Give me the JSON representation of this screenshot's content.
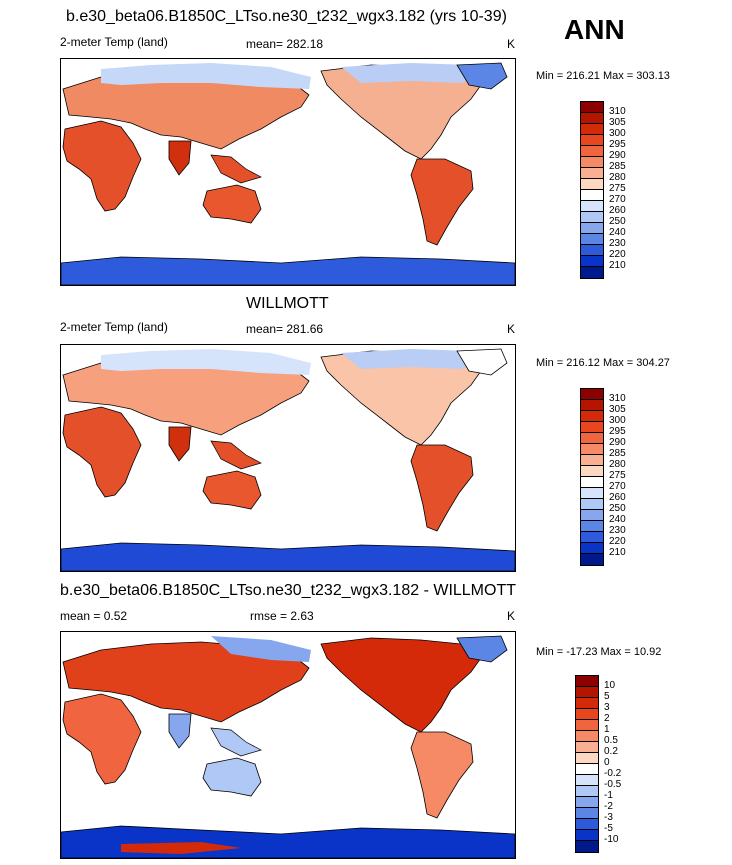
{
  "panels": [
    {
      "title": "b.e30_beta06.B1850C_LTso.ne30_t232_wgx3.182 (yrs 10-39)",
      "left_label": "2-meter Temp (land)",
      "center_label": "mean= 282.18",
      "units": "K",
      "minmax": "Min = 216.21 Max = 303.13",
      "colorbar_labels": [
        "310",
        "305",
        "300",
        "295",
        "290",
        "285",
        "280",
        "275",
        "270",
        "260",
        "250",
        "240",
        "230",
        "220",
        "210"
      ],
      "colorbar_colors": [
        "#8b0000",
        "#b51400",
        "#d42a0a",
        "#e8461e",
        "#f0653f",
        "#f68a66",
        "#f9b092",
        "#fcd7c2",
        "#ffffff",
        "#d6e4fb",
        "#b0c8f6",
        "#86a7ee",
        "#5b86e6",
        "#2e5bdc",
        "#0a34c8",
        "#001a8c"
      ]
    },
    {
      "title": "WILLMOTT",
      "left_label": "2-meter Temp (land)",
      "center_label": "mean= 281.66",
      "units": "K",
      "minmax": "Min = 216.12 Max = 304.27",
      "colorbar_labels": [
        "310",
        "305",
        "300",
        "295",
        "290",
        "285",
        "280",
        "275",
        "270",
        "260",
        "250",
        "240",
        "230",
        "220",
        "210"
      ],
      "colorbar_colors": [
        "#8b0000",
        "#b51400",
        "#d42a0a",
        "#e8461e",
        "#f0653f",
        "#f68a66",
        "#f9b092",
        "#fcd7c2",
        "#ffffff",
        "#d6e4fb",
        "#b0c8f6",
        "#86a7ee",
        "#5b86e6",
        "#2e5bdc",
        "#0a34c8",
        "#001a8c"
      ]
    },
    {
      "title": "b.e30_beta06.B1850C_LTso.ne30_t232_wgx3.182 - WILLMOTT",
      "left_label": "mean =   0.52",
      "center_label": "rmse =   2.63",
      "units": "K",
      "minmax": "Min = -17.23 Max =  10.92",
      "colorbar_labels": [
        "10",
        "5",
        "3",
        "2",
        "1",
        "0.5",
        "0.2",
        "0",
        "-0.2",
        "-0.5",
        "-1",
        "-2",
        "-3",
        "-5",
        "-10"
      ],
      "colorbar_colors": [
        "#8b0000",
        "#b51400",
        "#d42a0a",
        "#e8461e",
        "#f0653f",
        "#f68a66",
        "#f9b092",
        "#fcd7c2",
        "#ffffff",
        "#d6e4fb",
        "#b0c8f6",
        "#86a7ee",
        "#5b86e6",
        "#2e5bdc",
        "#0a34c8",
        "#001a8c"
      ]
    }
  ],
  "season": "ANN"
}
